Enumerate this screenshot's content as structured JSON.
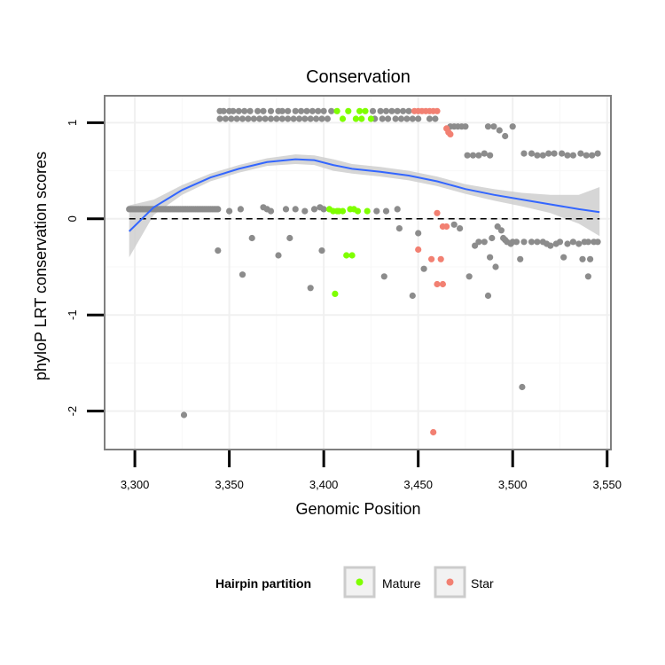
{
  "chart_data": {
    "type": "scatter",
    "title": "Conservation",
    "xlabel": "Genomic Position",
    "ylabel": "phyloP LRT conservation scores",
    "xlim": [
      3284,
      3552
    ],
    "ylim": [
      -2.4,
      1.28
    ],
    "x_ticks": [
      3300,
      3350,
      3400,
      3450,
      3500,
      3550
    ],
    "x_tick_labels": [
      "3,300",
      "3,350",
      "3,400",
      "3,450",
      "3,500",
      "3,550"
    ],
    "y_ticks": [
      -2,
      -1,
      0,
      1
    ],
    "y_tick_labels": [
      "-2",
      "-1",
      "0",
      "1"
    ],
    "reference_line_y": 0,
    "legend": {
      "title": "Hairpin partition",
      "entries": [
        {
          "label": "Mature",
          "color": "#7fff00"
        },
        {
          "label": "Star",
          "color": "#f28072"
        }
      ]
    },
    "colors": {
      "other": "#8c8c8c",
      "Mature": "#7fff00",
      "Star": "#f28072",
      "smooth": "#3366ff",
      "band": "#cccccc"
    },
    "series": [
      {
        "name": "Other",
        "color": "#8c8c8c",
        "points": [
          [
            3297,
            0.1
          ],
          [
            3298,
            0.1
          ],
          [
            3299,
            0.1
          ],
          [
            3300,
            0.1
          ],
          [
            3301,
            0.1
          ],
          [
            3302,
            0.1
          ],
          [
            3303,
            0.1
          ],
          [
            3304,
            0.1
          ],
          [
            3305,
            0.1
          ],
          [
            3306,
            0.1
          ],
          [
            3307,
            0.1
          ],
          [
            3308,
            0.1
          ],
          [
            3309,
            0.1
          ],
          [
            3310,
            0.1
          ],
          [
            3311,
            0.1
          ],
          [
            3312,
            0.1
          ],
          [
            3313,
            0.1
          ],
          [
            3314,
            0.1
          ],
          [
            3315,
            0.1
          ],
          [
            3316,
            0.1
          ],
          [
            3317,
            0.1
          ],
          [
            3318,
            0.1
          ],
          [
            3319,
            0.1
          ],
          [
            3320,
            0.1
          ],
          [
            3321,
            0.1
          ],
          [
            3322,
            0.1
          ],
          [
            3323,
            0.1
          ],
          [
            3324,
            0.1
          ],
          [
            3325,
            0.1
          ],
          [
            3326,
            0.1
          ],
          [
            3327,
            0.1
          ],
          [
            3328,
            0.1
          ],
          [
            3329,
            0.1
          ],
          [
            3330,
            0.1
          ],
          [
            3331,
            0.1
          ],
          [
            3332,
            0.1
          ],
          [
            3333,
            0.1
          ],
          [
            3334,
            0.1
          ],
          [
            3335,
            0.1
          ],
          [
            3336,
            0.1
          ],
          [
            3337,
            0.1
          ],
          [
            3338,
            0.1
          ],
          [
            3339,
            0.1
          ],
          [
            3340,
            0.1
          ],
          [
            3341,
            0.1
          ],
          [
            3342,
            0.1
          ],
          [
            3343,
            0.1
          ],
          [
            3344,
            0.1
          ],
          [
            3350,
            0.08
          ],
          [
            3356,
            0.1
          ],
          [
            3368,
            0.12
          ],
          [
            3370,
            0.1
          ],
          [
            3372,
            0.08
          ],
          [
            3380,
            0.1
          ],
          [
            3385,
            0.1
          ],
          [
            3390,
            0.08
          ],
          [
            3395,
            0.1
          ],
          [
            3398,
            0.12
          ],
          [
            3400,
            0.1
          ],
          [
            3428,
            0.08
          ],
          [
            3433,
            0.08
          ],
          [
            3439,
            0.1
          ],
          [
            3344,
            -0.33
          ],
          [
            3357,
            -0.58
          ],
          [
            3362,
            -0.2
          ],
          [
            3376,
            -0.38
          ],
          [
            3382,
            -0.2
          ],
          [
            3393,
            -0.72
          ],
          [
            3399,
            -0.33
          ],
          [
            3432,
            -0.6
          ],
          [
            3440,
            -0.1
          ],
          [
            3447,
            -0.8
          ],
          [
            3450,
            -0.15
          ],
          [
            3453,
            -0.52
          ],
          [
            3469,
            -0.06
          ],
          [
            3472,
            -0.1
          ],
          [
            3477,
            -0.6
          ],
          [
            3487,
            -0.8
          ],
          [
            3491,
            -0.5
          ],
          [
            3505,
            -1.75
          ],
          [
            3540,
            -0.6
          ],
          [
            3326,
            -2.04
          ],
          [
            3480,
            -0.28
          ],
          [
            3482,
            -0.24
          ],
          [
            3485,
            -0.24
          ],
          [
            3488,
            -0.4
          ],
          [
            3489,
            -0.2
          ],
          [
            3492,
            -0.08
          ],
          [
            3494,
            -0.12
          ],
          [
            3495,
            -0.2
          ],
          [
            3496,
            -0.22
          ],
          [
            3497,
            -0.24
          ],
          [
            3499,
            -0.26
          ],
          [
            3500,
            -0.24
          ],
          [
            3502,
            -0.24
          ],
          [
            3504,
            -0.42
          ],
          [
            3506,
            -0.24
          ],
          [
            3510,
            -0.24
          ],
          [
            3513,
            -0.24
          ],
          [
            3516,
            -0.24
          ],
          [
            3518,
            -0.26
          ],
          [
            3520,
            -0.28
          ],
          [
            3523,
            -0.26
          ],
          [
            3525,
            -0.24
          ],
          [
            3527,
            -0.4
          ],
          [
            3529,
            -0.26
          ],
          [
            3532,
            -0.24
          ],
          [
            3535,
            -0.26
          ],
          [
            3537,
            -0.42
          ],
          [
            3538,
            -0.24
          ],
          [
            3540,
            -0.24
          ],
          [
            3541,
            -0.42
          ],
          [
            3543,
            -0.24
          ],
          [
            3545,
            -0.24
          ],
          [
            3345,
            1.12
          ],
          [
            3347,
            1.12
          ],
          [
            3350,
            1.12
          ],
          [
            3352,
            1.12
          ],
          [
            3355,
            1.12
          ],
          [
            3358,
            1.12
          ],
          [
            3361,
            1.12
          ],
          [
            3365,
            1.12
          ],
          [
            3368,
            1.12
          ],
          [
            3372,
            1.12
          ],
          [
            3376,
            1.12
          ],
          [
            3378,
            1.12
          ],
          [
            3381,
            1.12
          ],
          [
            3385,
            1.12
          ],
          [
            3388,
            1.12
          ],
          [
            3391,
            1.12
          ],
          [
            3394,
            1.12
          ],
          [
            3397,
            1.12
          ],
          [
            3400,
            1.12
          ],
          [
            3404,
            1.12
          ],
          [
            3426,
            1.12
          ],
          [
            3430,
            1.12
          ],
          [
            3433,
            1.12
          ],
          [
            3436,
            1.12
          ],
          [
            3439,
            1.12
          ],
          [
            3442,
            1.12
          ],
          [
            3445,
            1.12
          ],
          [
            3345,
            1.04
          ],
          [
            3348,
            1.04
          ],
          [
            3351,
            1.04
          ],
          [
            3354,
            1.04
          ],
          [
            3357,
            1.04
          ],
          [
            3360,
            1.04
          ],
          [
            3363,
            1.04
          ],
          [
            3366,
            1.04
          ],
          [
            3369,
            1.04
          ],
          [
            3372,
            1.04
          ],
          [
            3375,
            1.04
          ],
          [
            3378,
            1.04
          ],
          [
            3381,
            1.04
          ],
          [
            3384,
            1.04
          ],
          [
            3387,
            1.04
          ],
          [
            3390,
            1.04
          ],
          [
            3393,
            1.04
          ],
          [
            3396,
            1.04
          ],
          [
            3399,
            1.04
          ],
          [
            3402,
            1.04
          ],
          [
            3427,
            1.04
          ],
          [
            3431,
            1.04
          ],
          [
            3434,
            1.04
          ],
          [
            3438,
            1.04
          ],
          [
            3441,
            1.04
          ],
          [
            3444,
            1.04
          ],
          [
            3447,
            1.04
          ],
          [
            3450,
            1.04
          ],
          [
            3456,
            1.04
          ],
          [
            3459,
            1.04
          ],
          [
            3467,
            0.96
          ],
          [
            3469,
            0.96
          ],
          [
            3471,
            0.96
          ],
          [
            3473,
            0.96
          ],
          [
            3475,
            0.96
          ],
          [
            3487,
            0.96
          ],
          [
            3490,
            0.96
          ],
          [
            3493,
            0.92
          ],
          [
            3496,
            0.86
          ],
          [
            3500,
            0.96
          ],
          [
            3476,
            0.66
          ],
          [
            3479,
            0.66
          ],
          [
            3482,
            0.66
          ],
          [
            3485,
            0.68
          ],
          [
            3488,
            0.66
          ],
          [
            3506,
            0.68
          ],
          [
            3510,
            0.68
          ],
          [
            3513,
            0.66
          ],
          [
            3516,
            0.66
          ],
          [
            3519,
            0.68
          ],
          [
            3522,
            0.68
          ],
          [
            3526,
            0.68
          ],
          [
            3529,
            0.66
          ],
          [
            3532,
            0.66
          ],
          [
            3536,
            0.68
          ],
          [
            3539,
            0.66
          ],
          [
            3542,
            0.66
          ],
          [
            3545,
            0.68
          ]
        ]
      },
      {
        "name": "Mature",
        "color": "#7fff00",
        "points": [
          [
            3403,
            0.1
          ],
          [
            3405,
            0.08
          ],
          [
            3407,
            0.08
          ],
          [
            3408,
            0.08
          ],
          [
            3410,
            0.08
          ],
          [
            3414,
            0.1
          ],
          [
            3416,
            0.1
          ],
          [
            3418,
            0.08
          ],
          [
            3423,
            0.08
          ],
          [
            3412,
            -0.38
          ],
          [
            3415,
            -0.38
          ],
          [
            3406,
            -0.78
          ],
          [
            3407,
            1.12
          ],
          [
            3413,
            1.12
          ],
          [
            3419,
            1.12
          ],
          [
            3422,
            1.12
          ],
          [
            3410,
            1.04
          ],
          [
            3417,
            1.04
          ],
          [
            3420,
            1.04
          ],
          [
            3425,
            1.04
          ]
        ]
      },
      {
        "name": "Star",
        "color": "#f28072",
        "points": [
          [
            3448,
            1.12
          ],
          [
            3450,
            1.12
          ],
          [
            3452,
            1.12
          ],
          [
            3454,
            1.12
          ],
          [
            3456,
            1.12
          ],
          [
            3458,
            1.12
          ],
          [
            3460,
            1.12
          ],
          [
            3465,
            0.94
          ],
          [
            3466,
            0.9
          ],
          [
            3467,
            0.88
          ],
          [
            3460,
            0.06
          ],
          [
            3463,
            -0.08
          ],
          [
            3465,
            -0.08
          ],
          [
            3457,
            -0.42
          ],
          [
            3462,
            -0.42
          ],
          [
            3450,
            -0.32
          ],
          [
            3460,
            -0.68
          ],
          [
            3463,
            -0.68
          ],
          [
            3458,
            -2.22
          ]
        ]
      }
    ],
    "smooth": {
      "x": [
        3297,
        3310,
        3325,
        3340,
        3355,
        3370,
        3385,
        3395,
        3405,
        3415,
        3430,
        3445,
        3460,
        3475,
        3490,
        3505,
        3520,
        3535,
        3546
      ],
      "y": [
        -0.13,
        0.12,
        0.3,
        0.43,
        0.52,
        0.59,
        0.62,
        0.61,
        0.56,
        0.52,
        0.49,
        0.45,
        0.39,
        0.31,
        0.25,
        0.2,
        0.15,
        0.1,
        0.07
      ],
      "lower": [
        -0.4,
        0.04,
        0.25,
        0.39,
        0.48,
        0.55,
        0.57,
        0.56,
        0.5,
        0.47,
        0.44,
        0.4,
        0.34,
        0.26,
        0.19,
        0.13,
        0.06,
        -0.05,
        -0.18
      ],
      "upper": [
        0.14,
        0.2,
        0.35,
        0.47,
        0.56,
        0.63,
        0.67,
        0.66,
        0.62,
        0.57,
        0.54,
        0.5,
        0.44,
        0.36,
        0.31,
        0.27,
        0.25,
        0.25,
        0.33
      ]
    }
  }
}
